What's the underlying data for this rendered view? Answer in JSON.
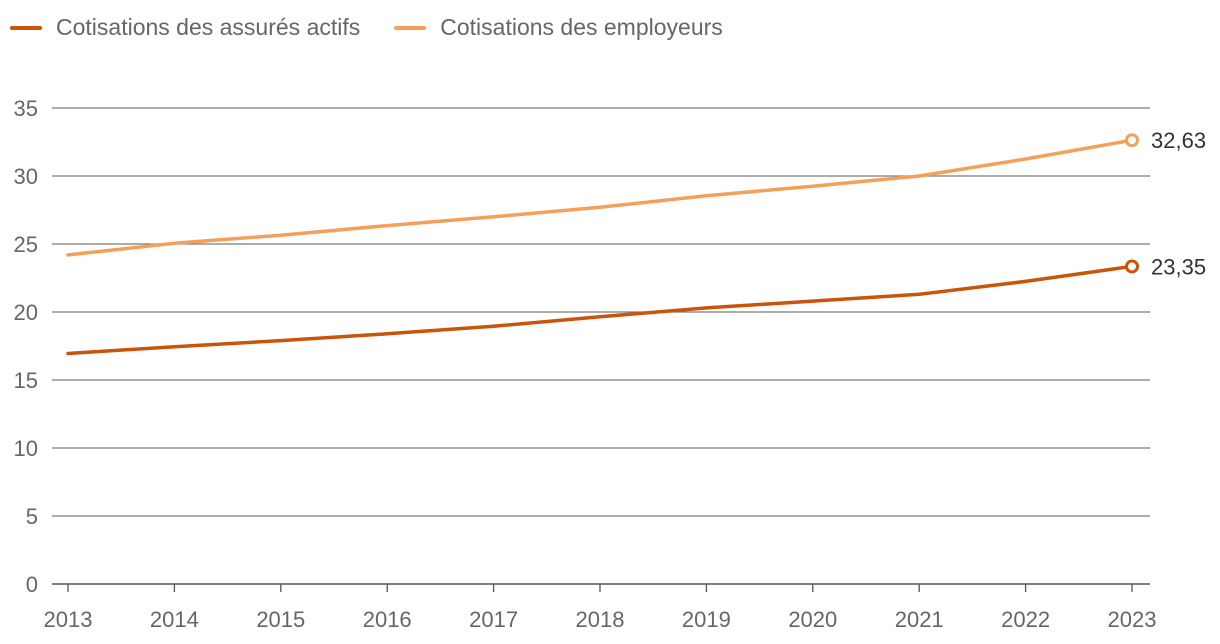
{
  "chart_data": {
    "type": "line",
    "title": "",
    "xlabel": "",
    "ylabel": "",
    "x": [
      "2013",
      "2014",
      "2015",
      "2016",
      "2017",
      "2018",
      "2019",
      "2020",
      "2021",
      "2022",
      "2023"
    ],
    "ylim": [
      0,
      35
    ],
    "yticks": [
      0,
      5,
      10,
      15,
      20,
      25,
      30,
      35
    ],
    "grid": true,
    "legend_position": "top-left",
    "series": [
      {
        "name": "Cotisations des assurés actifs",
        "color": "#c9540a",
        "values": [
          16.95,
          17.45,
          17.9,
          18.4,
          18.95,
          19.65,
          20.3,
          20.8,
          21.3,
          22.25,
          23.35
        ],
        "end_label": "23,35"
      },
      {
        "name": "Cotisations des employeurs",
        "color": "#f5a05a",
        "values": [
          24.2,
          25.05,
          25.65,
          26.35,
          27.0,
          27.7,
          28.55,
          29.25,
          30.0,
          31.25,
          32.63
        ],
        "end_label": "32,63"
      }
    ]
  }
}
